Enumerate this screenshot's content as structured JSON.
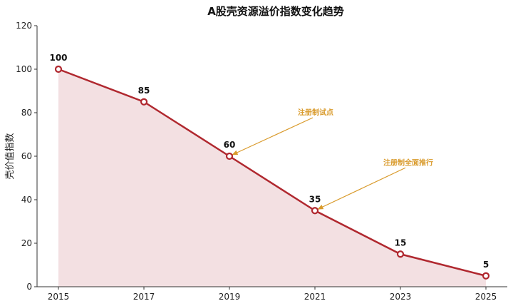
{
  "chart_data": {
    "type": "area",
    "title": "A股壳资源溢价指数变化趋势",
    "xlabel": "",
    "ylabel": "壳价值指数",
    "x": [
      "2015",
      "2017",
      "2019",
      "2021",
      "2023",
      "2025"
    ],
    "values": [
      100,
      85,
      60,
      35,
      15,
      5
    ],
    "ylim": [
      0,
      120
    ],
    "yticks": [
      0,
      20,
      40,
      60,
      80,
      100,
      120
    ],
    "grid": false,
    "line_color": "#b0282f",
    "fill_color": "#f3e0e2",
    "annotation_color": "#d99a2b",
    "annotations": [
      {
        "text": "注册制试点",
        "x": "2019",
        "y": 60
      },
      {
        "text": "注册制全面推行",
        "x": "2021",
        "y": 35
      }
    ]
  }
}
